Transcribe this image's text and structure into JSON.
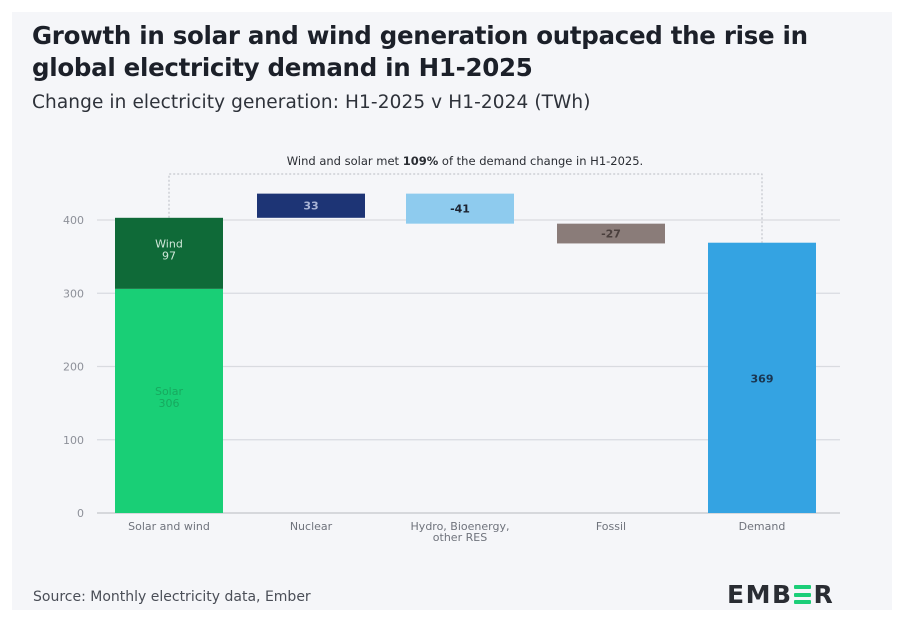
{
  "header": {
    "title": "Growth in solar and wind generation outpaced the rise in global electricity demand in H1-2025",
    "subtitle": "Change in electricity generation: H1-2025 v H1-2024 (TWh)"
  },
  "annotation": {
    "prefix": "Wind and solar met ",
    "highlight": "109%",
    "suffix": " of the demand change in H1-2025."
  },
  "footer": {
    "source": "Source: Monthly electricity data, Ember",
    "logo_left": "EMB",
    "logo_right": "R"
  },
  "chart_data": {
    "type": "bar",
    "subtype": "waterfall",
    "title": "Growth in solar and wind generation outpaced the rise in global electricity demand in H1-2025",
    "subtitle": "Change in electricity generation: H1-2025 v H1-2024 (TWh)",
    "xlabel": "",
    "ylabel": "",
    "ylim": [
      0,
      400
    ],
    "yticks": [
      0,
      100,
      200,
      300,
      400
    ],
    "grid": true,
    "categories": [
      "Solar and wind",
      "Nuclear",
      "Hydro, Bioenergy, other RES",
      "Fossil",
      "Demand"
    ],
    "category_lines": [
      [
        "Solar and wind"
      ],
      [
        "Nuclear"
      ],
      [
        "Hydro, Bioenergy,",
        "other RES"
      ],
      [
        "Fossil"
      ],
      [
        "Demand"
      ]
    ],
    "bars": [
      {
        "category": "Solar and wind",
        "segments": [
          {
            "name": "Solar",
            "value": 306,
            "base": 0,
            "color": "#19cf76",
            "label_color": "#17a95f",
            "show_name": true
          },
          {
            "name": "Wind",
            "value": 97,
            "base": 306,
            "color": "#0f6a38",
            "label_color": "#cfe7d8",
            "show_name": true
          }
        ]
      },
      {
        "category": "Nuclear",
        "segments": [
          {
            "name": "Nuclear",
            "value": 33,
            "base": 403,
            "color": "#1d3475",
            "label_color": "#a9b4d6",
            "show_name": false
          }
        ]
      },
      {
        "category": "Hydro, Bioenergy, other RES",
        "segments": [
          {
            "name": "Hydro, Bioenergy, other RES",
            "value": -41,
            "base": 436,
            "color": "#8ecbee",
            "label_color": "#1c2330",
            "show_name": false
          }
        ]
      },
      {
        "category": "Fossil",
        "segments": [
          {
            "name": "Fossil",
            "value": -27,
            "base": 395,
            "color": "#8a7c79",
            "label_color": "#4a3f3d",
            "show_name": false
          }
        ]
      },
      {
        "category": "Demand",
        "segments": [
          {
            "name": "Demand",
            "value": 369,
            "base": 0,
            "color": "#34a3e2",
            "label_color": "#1a3550",
            "show_name": false
          }
        ]
      }
    ],
    "annotation": "Wind and solar met 109% of the demand change in H1-2025.",
    "source": "Source: Monthly electricity data, Ember"
  }
}
